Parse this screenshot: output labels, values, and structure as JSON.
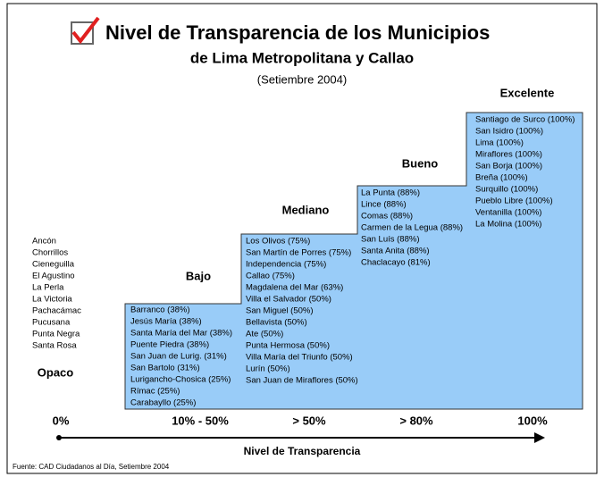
{
  "header": {
    "title": "Nivel de Transparencia de los Municipios",
    "subtitle": "de Lima Metropolitana y Callao",
    "date": "(Setiembre 2004)"
  },
  "levels": [
    {
      "name": "Opaco",
      "range": "0%",
      "municipalities": [
        "Ancón",
        "Chorrillos",
        "Cieneguilla",
        "El Agustino",
        "La Perla",
        "La Victoria",
        "Pachacámac",
        "Pucusana",
        "Punta Negra",
        "Santa Rosa"
      ]
    },
    {
      "name": "Bajo",
      "range": "10% - 50%",
      "municipalities": [
        "Barranco (38%)",
        "Jesús María (38%)",
        "Santa María del Mar (38%)",
        "Puente Piedra (38%)",
        "San Juan de Lurig. (31%)",
        "San Bartolo (31%)",
        "Lurigancho-Chosica (25%)",
        "Rímac (25%)",
        "Carabayllo (25%)"
      ]
    },
    {
      "name": "Mediano",
      "range": "> 50%",
      "municipalities": [
        "Los Olivos (75%)",
        "San Martín de Porres (75%)",
        "Independencia (75%)",
        "Callao (75%)",
        "Magdalena del Mar (63%)",
        "Villa el Salvador (50%)",
        "San Miguel (50%)",
        "Bellavista (50%)",
        "Ate (50%)",
        "Punta Hermosa (50%)",
        "Villa María del Triunfo (50%)",
        "Lurín (50%)",
        "San Juan de Miraflores (50%)"
      ]
    },
    {
      "name": "Bueno",
      "range": "> 80%",
      "municipalities": [
        "La Punta  (88%)",
        "Lince (88%)",
        "Comas (88%)",
        "Carmen de la Legua (88%)",
        "San Luís (88%)",
        "Santa Anita (88%)",
        "Chaclacayo (81%)"
      ]
    },
    {
      "name": "Excelente",
      "range": "100%",
      "municipalities": [
        "Santiago de Surco (100%)",
        "San Isidro (100%)",
        "Lima (100%)",
        "Miraflores (100%)",
        "San Borja (100%)",
        "Breña (100%)",
        "Surquillo (100%)",
        "Pueblo Libre (100%)",
        "Ventanilla (100%)",
        "La Molina (100%)"
      ]
    }
  ],
  "axis_title": "Nivel de Transparencia",
  "source": "Fuente: CAD Ciudadanos al Día, Setiembre 2004"
}
